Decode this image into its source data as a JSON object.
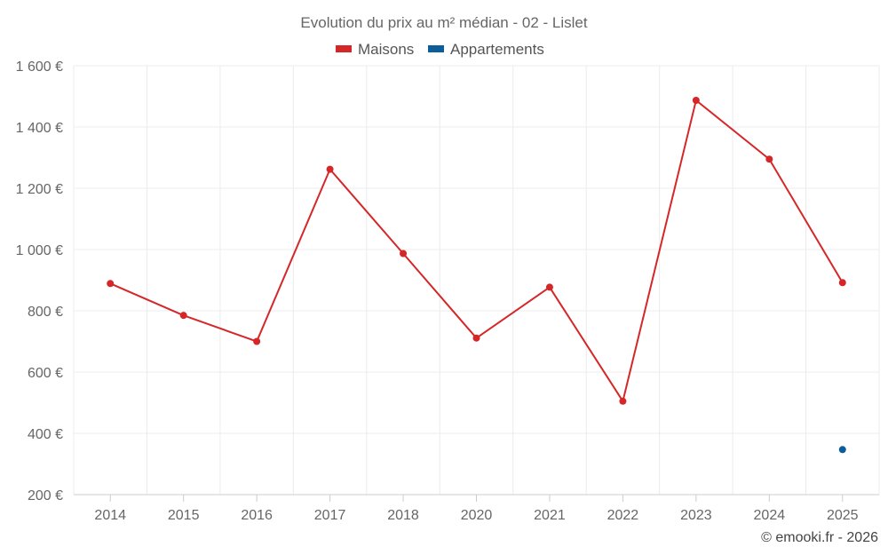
{
  "chart_data": {
    "type": "line",
    "title": "Evolution du prix au m² médian - 02 - Lislet",
    "xlabel": "",
    "ylabel": "",
    "categories": [
      "2014",
      "2015",
      "2016",
      "2017",
      "2018",
      "2020",
      "2021",
      "2022",
      "2023",
      "2024",
      "2025"
    ],
    "y_ticks": [
      "200 €",
      "400 €",
      "600 €",
      "800 €",
      "1 000 €",
      "1 200 €",
      "1 400 €",
      "1 600 €"
    ],
    "ylim": [
      200,
      1600
    ],
    "grid": true,
    "legend_position": "top-center",
    "series": [
      {
        "name": "Maisons",
        "color": "#d62728",
        "values": [
          889,
          785,
          700,
          1262,
          987,
          711,
          877,
          505,
          1487,
          1295,
          892
        ]
      },
      {
        "name": "Appartements",
        "color": "#0b5e99",
        "values": [
          null,
          null,
          null,
          null,
          null,
          null,
          null,
          null,
          null,
          null,
          347
        ]
      }
    ],
    "credit": "© emooki.fr - 2026"
  }
}
